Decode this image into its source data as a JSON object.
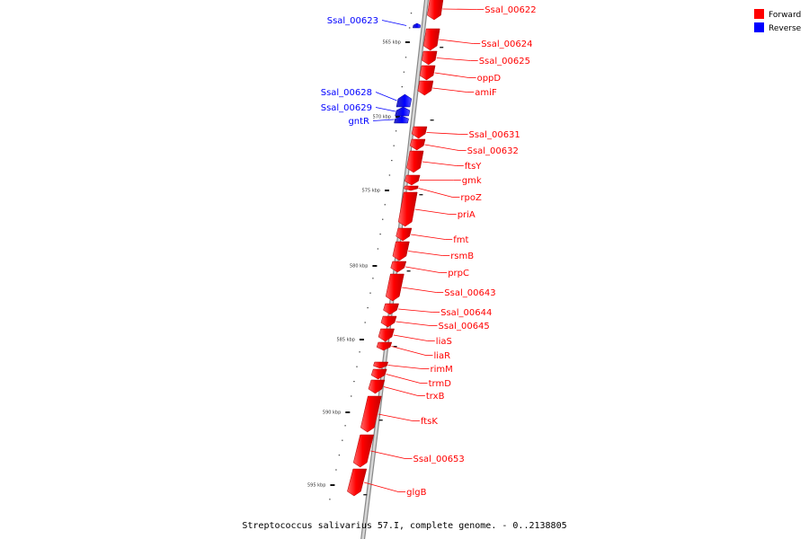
{
  "caption": "Streptococcus salivarius 57.I, complete genome. - 0..2138805",
  "colors": {
    "forward": "#ff0000",
    "reverse": "#0000ff",
    "backbone": "#999999"
  },
  "legend": [
    {
      "label": "Forward",
      "color": "#ff0000"
    },
    {
      "label": "Reverse",
      "color": "#0000ff"
    }
  ],
  "ticks": [
    "565 kbp",
    "570 kbp",
    "575 kbp",
    "580 kbp",
    "585 kbp",
    "590 kbp",
    "595 kbp"
  ],
  "genes": [
    {
      "name": "Ssal_00622",
      "strand": "forward"
    },
    {
      "name": "Ssal_00623",
      "strand": "reverse"
    },
    {
      "name": "Ssal_00624",
      "strand": "forward"
    },
    {
      "name": "Ssal_00625",
      "strand": "forward"
    },
    {
      "name": "oppD",
      "strand": "forward"
    },
    {
      "name": "amiF",
      "strand": "forward"
    },
    {
      "name": "Ssal_00628",
      "strand": "reverse"
    },
    {
      "name": "Ssal_00629",
      "strand": "reverse"
    },
    {
      "name": "gntR",
      "strand": "reverse"
    },
    {
      "name": "Ssal_00631",
      "strand": "forward"
    },
    {
      "name": "Ssal_00632",
      "strand": "forward"
    },
    {
      "name": "ftsY",
      "strand": "forward"
    },
    {
      "name": "gmk",
      "strand": "forward"
    },
    {
      "name": "rpoZ",
      "strand": "forward"
    },
    {
      "name": "priA",
      "strand": "forward"
    },
    {
      "name": "fmt",
      "strand": "forward"
    },
    {
      "name": "rsmB",
      "strand": "forward"
    },
    {
      "name": "prpC",
      "strand": "forward"
    },
    {
      "name": "Ssal_00643",
      "strand": "forward"
    },
    {
      "name": "Ssal_00644",
      "strand": "forward"
    },
    {
      "name": "Ssal_00645",
      "strand": "forward"
    },
    {
      "name": "liaS",
      "strand": "forward"
    },
    {
      "name": "liaR",
      "strand": "forward"
    },
    {
      "name": "rimM",
      "strand": "forward"
    },
    {
      "name": "trmD",
      "strand": "forward"
    },
    {
      "name": "trxB",
      "strand": "forward"
    },
    {
      "name": "ftsK",
      "strand": "forward"
    },
    {
      "name": "Ssal_00653",
      "strand": "forward"
    },
    {
      "name": "glgB",
      "strand": "forward"
    }
  ]
}
